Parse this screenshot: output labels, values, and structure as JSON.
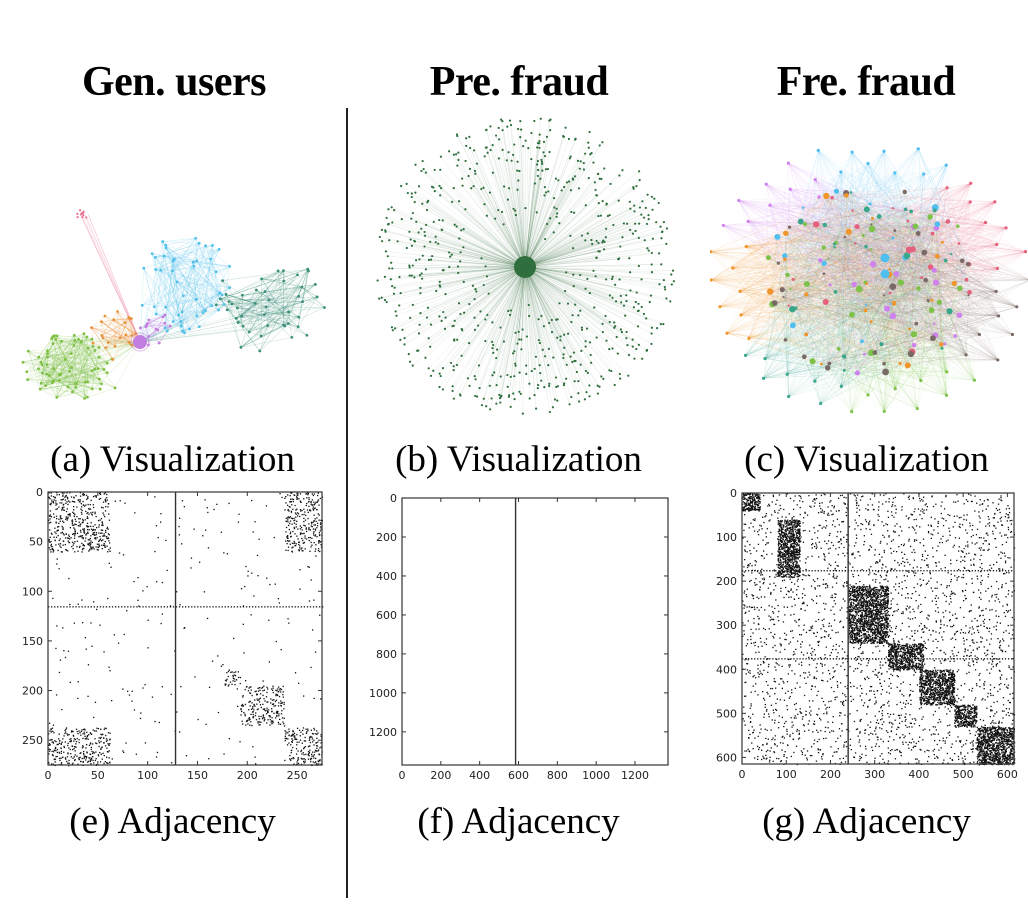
{
  "columns": [
    {
      "title": "Gen. users",
      "viz_caption": "(a) Visualization",
      "adj_caption": "(e) Adjacency"
    },
    {
      "title": "Pre. fraud",
      "viz_caption": "(b) Visualization",
      "adj_caption": "(f) Adjacency"
    },
    {
      "title": "Fre. fraud",
      "viz_caption": "(c) Visualization",
      "adj_caption": "(g) Adjacency"
    }
  ],
  "colors": {
    "gen_green": "#7dc142",
    "gen_orange": "#e8923a",
    "gen_purple": "#c27ee0",
    "gen_cyan": "#4fc1ea",
    "gen_teal": "#3c8f78",
    "gen_pink": "#e8708e",
    "pre_green": "#2f6f3d",
    "fre_cyan": "#4fbff0",
    "fre_orange": "#f0952a",
    "fre_purple": "#cf82ef",
    "fre_green": "#7ec24a",
    "fre_pink": "#e6607e",
    "fre_teal": "#39a78a",
    "fre_brown": "#7a6a66"
  },
  "chart_data": [
    {
      "type": "heatmap",
      "title": "(e) Adjacency",
      "panel": "Gen. users",
      "xlim": [
        0,
        275
      ],
      "ylim": [
        275,
        0
      ],
      "xticks": [
        0,
        50,
        100,
        150,
        200,
        250
      ],
      "yticks": [
        0,
        50,
        100,
        150,
        200,
        250
      ],
      "dense_blocks": [
        {
          "rows": [
            0,
            60
          ],
          "cols": [
            0,
            62
          ]
        },
        {
          "rows": [
            180,
            195
          ],
          "cols": [
            177,
            193
          ]
        },
        {
          "rows": [
            195,
            235
          ],
          "cols": [
            193,
            237
          ]
        },
        {
          "rows": [
            237,
            275
          ],
          "cols": [
            237,
            275
          ]
        },
        {
          "rows": [
            0,
            60
          ],
          "cols": [
            237,
            275
          ]
        },
        {
          "rows": [
            237,
            275
          ],
          "cols": [
            0,
            62
          ]
        }
      ],
      "dense_lines": [
        {
          "axis": "col",
          "at": 128
        },
        {
          "axis": "row",
          "at": 115
        }
      ]
    },
    {
      "type": "heatmap",
      "title": "(f) Adjacency",
      "panel": "Pre. fraud",
      "xlim": [
        0,
        1370
      ],
      "ylim": [
        1370,
        0
      ],
      "xticks": [
        0,
        200,
        400,
        600,
        800,
        1000,
        1200
      ],
      "yticks": [
        0,
        200,
        400,
        600,
        800,
        1000,
        1200
      ],
      "dense_lines": [
        {
          "axis": "col",
          "at": 585
        }
      ]
    },
    {
      "type": "heatmap",
      "title": "(g) Adjacency",
      "panel": "Fre. fraud",
      "xlim": [
        0,
        615
      ],
      "ylim": [
        615,
        0
      ],
      "xticks": [
        0,
        100,
        200,
        300,
        400,
        500,
        600
      ],
      "yticks": [
        0,
        100,
        200,
        300,
        400,
        500,
        600
      ],
      "dense_lines": [
        {
          "axis": "col",
          "at": 240
        },
        {
          "axis": "row",
          "at": 175
        },
        {
          "axis": "row",
          "at": 375
        }
      ]
    }
  ]
}
